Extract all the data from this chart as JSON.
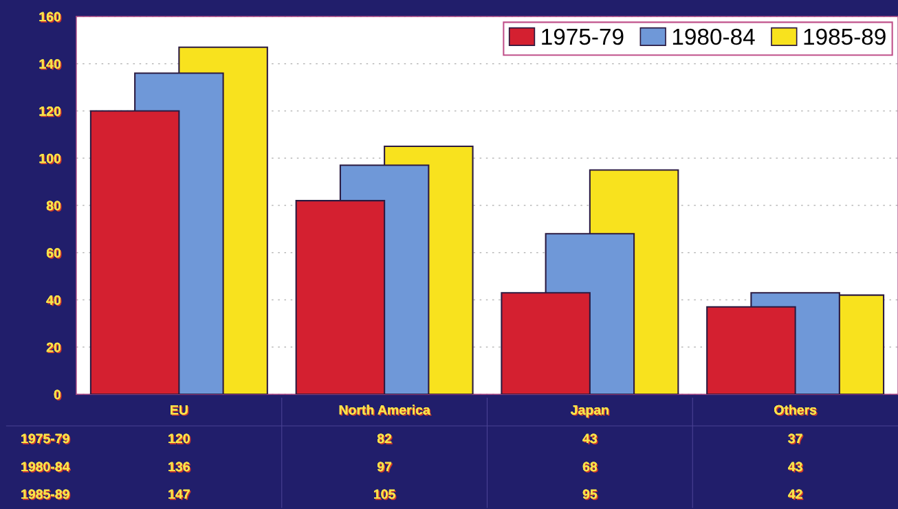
{
  "chart_data": {
    "type": "bar",
    "categories": [
      "EU",
      "North America",
      "Japan",
      "Others"
    ],
    "series": [
      {
        "name": "1975-79",
        "color": "#d42030",
        "values": [
          120,
          82,
          43,
          37
        ]
      },
      {
        "name": "1980-84",
        "color": "#6f98d8",
        "values": [
          136,
          97,
          68,
          43
        ]
      },
      {
        "name": "1985-89",
        "color": "#f8e21e",
        "values": [
          147,
          105,
          95,
          42
        ]
      }
    ],
    "ylim": [
      0,
      160
    ],
    "yticks": [
      0,
      20,
      40,
      60,
      80,
      100,
      120,
      140,
      160
    ],
    "grid": "y",
    "legend": "top right",
    "data_labels": true
  }
}
